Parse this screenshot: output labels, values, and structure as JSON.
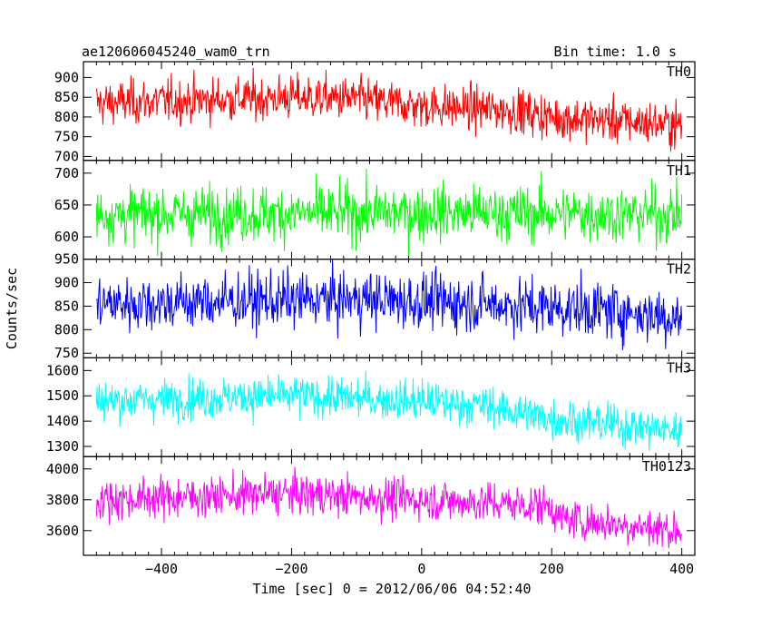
{
  "header": {
    "title": "ae120606045240_wam0_trn",
    "bin_time": "Bin time: 1.0 s"
  },
  "chart_data": {
    "type": "line",
    "title": "ae120606045240_wam0_trn",
    "xlabel": "Time [sec] 0 = 2012/06/06 04:52:40",
    "ylabel": "Counts/sec",
    "xlim": [
      -520,
      420
    ],
    "x_range": [
      -500,
      400
    ],
    "bin_time_s": 1.0,
    "x_ticks": [
      -400,
      -200,
      0,
      200,
      400
    ],
    "x_tick_labels": [
      "−400",
      "−200",
      "0",
      "200",
      "400"
    ],
    "panels": [
      {
        "name": "TH0",
        "color": "#ff0000",
        "ylim": [
          690,
          940
        ],
        "yticks": [
          700,
          750,
          800,
          850,
          900
        ],
        "trend": [
          [
            -500,
            835
          ],
          [
            -200,
            850
          ],
          [
            -100,
            845
          ],
          [
            0,
            828
          ],
          [
            150,
            815
          ],
          [
            200,
            800
          ],
          [
            400,
            780
          ]
        ],
        "noise": 28,
        "range": [
          705,
          940
        ]
      },
      {
        "name": "TH1",
        "color": "#00ff00",
        "ylim": [
          565,
          720
        ],
        "yticks": [
          600,
          650,
          700
        ],
        "trend": [
          [
            -500,
            635
          ],
          [
            0,
            638
          ],
          [
            400,
            635
          ]
        ],
        "noise": 22,
        "range": [
          570,
          720
        ]
      },
      {
        "name": "TH2",
        "color": "#0000ff",
        "ylim": [
          740,
          950
        ],
        "yticks": [
          750,
          800,
          850,
          900,
          950
        ],
        "trend": [
          [
            -500,
            855
          ],
          [
            -100,
            865
          ],
          [
            100,
            855
          ],
          [
            300,
            840
          ],
          [
            400,
            825
          ]
        ],
        "noise": 30,
        "range": [
          745,
          950
        ]
      },
      {
        "name": "TH3",
        "color": "#00ffff",
        "ylim": [
          1260,
          1650
        ],
        "yticks": [
          1300,
          1400,
          1500,
          1600
        ],
        "trend": [
          [
            -500,
            1480
          ],
          [
            -200,
            1500
          ],
          [
            0,
            1480
          ],
          [
            100,
            1460
          ],
          [
            200,
            1410
          ],
          [
            400,
            1360
          ]
        ],
        "noise": 40,
        "range": [
          1265,
          1650
        ]
      },
      {
        "name": "TH0123",
        "color": "#ff00ff",
        "ylim": [
          3440,
          4080
        ],
        "yticks": [
          3600,
          3800,
          4000
        ],
        "trend": [
          [
            -500,
            3800
          ],
          [
            -200,
            3840
          ],
          [
            0,
            3800
          ],
          [
            200,
            3760
          ],
          [
            210,
            3680
          ],
          [
            400,
            3600
          ]
        ],
        "noise": 65,
        "range": [
          3450,
          4080
        ]
      }
    ]
  }
}
